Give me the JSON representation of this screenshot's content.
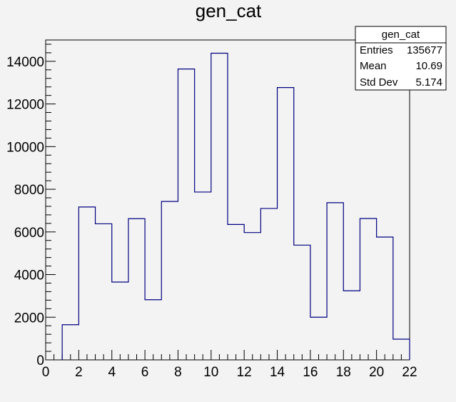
{
  "chart_data": {
    "type": "bar",
    "title": "gen_cat",
    "xlabel": "",
    "ylabel": "",
    "xlim": [
      0,
      22
    ],
    "ylim": [
      0,
      15000
    ],
    "bin_width": 1,
    "bin_edges": [
      0,
      1,
      2,
      3,
      4,
      5,
      6,
      7,
      8,
      9,
      10,
      11,
      12,
      13,
      14,
      15,
      16,
      17,
      18,
      19,
      20,
      21,
      22
    ],
    "values": [
      0,
      1650,
      7170,
      6380,
      3650,
      6620,
      2820,
      7430,
      13640,
      7870,
      14380,
      6350,
      5970,
      7100,
      12770,
      5380,
      2000,
      7370,
      3240,
      6630,
      5760,
      970
    ],
    "x_ticks": [
      "0",
      "2",
      "4",
      "6",
      "8",
      "10",
      "12",
      "14",
      "16",
      "18",
      "20",
      "22"
    ],
    "y_ticks": [
      "0",
      "2000",
      "4000",
      "6000",
      "8000",
      "10000",
      "12000",
      "14000"
    ],
    "line_color": "#000080",
    "grid": false,
    "legend": "none",
    "stats_box": {
      "placement": "top-right",
      "title": "gen_cat",
      "rows": [
        {
          "label": "Entries",
          "value": "135677"
        },
        {
          "label": "Mean",
          "value": "10.69"
        },
        {
          "label": "Std Dev",
          "value": "5.174"
        }
      ]
    }
  }
}
